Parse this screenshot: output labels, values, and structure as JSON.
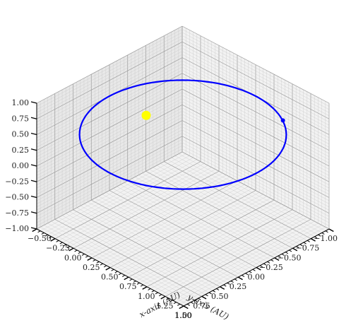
{
  "chart_data": {
    "type": "line",
    "projection": "3d",
    "xlabel": "x-axis (AU)",
    "ylabel": "y-axis (AU)",
    "zlabel": "",
    "xlim": [
      -0.5,
      1.5
    ],
    "ylim": [
      -1.0,
      1.0
    ],
    "zlim": [
      -1.0,
      1.0
    ],
    "xticks": [
      "−0.50",
      "−0.25",
      "0.00",
      "0.25",
      "0.50",
      "0.75",
      "1.00",
      "1.25",
      "1.50"
    ],
    "yticks": [
      "−1.00",
      "−0.75",
      "−0.50",
      "−0.25",
      "0.00",
      "0.25",
      "0.50",
      "0.75",
      "1.00"
    ],
    "zticks": [
      "−1.00",
      "−0.75",
      "−0.50",
      "−0.25",
      "0.00",
      "0.25",
      "0.50",
      "0.75",
      "1.00"
    ],
    "grid": true,
    "series": [
      {
        "kind": "orbit",
        "shape": "circle",
        "center": [
          0.5,
          0.0,
          0.5
        ],
        "radius": 1.0,
        "color": "#0000ff"
      },
      {
        "kind": "planet",
        "x": [
          1.0
        ],
        "y": [
          -0.87
        ],
        "z": [
          0.5
        ],
        "color": "#0000ff"
      },
      {
        "kind": "sun",
        "x": [
          0.0
        ],
        "y": [
          0.0
        ],
        "z": [
          0.5
        ],
        "color": "#ffff00"
      }
    ]
  }
}
